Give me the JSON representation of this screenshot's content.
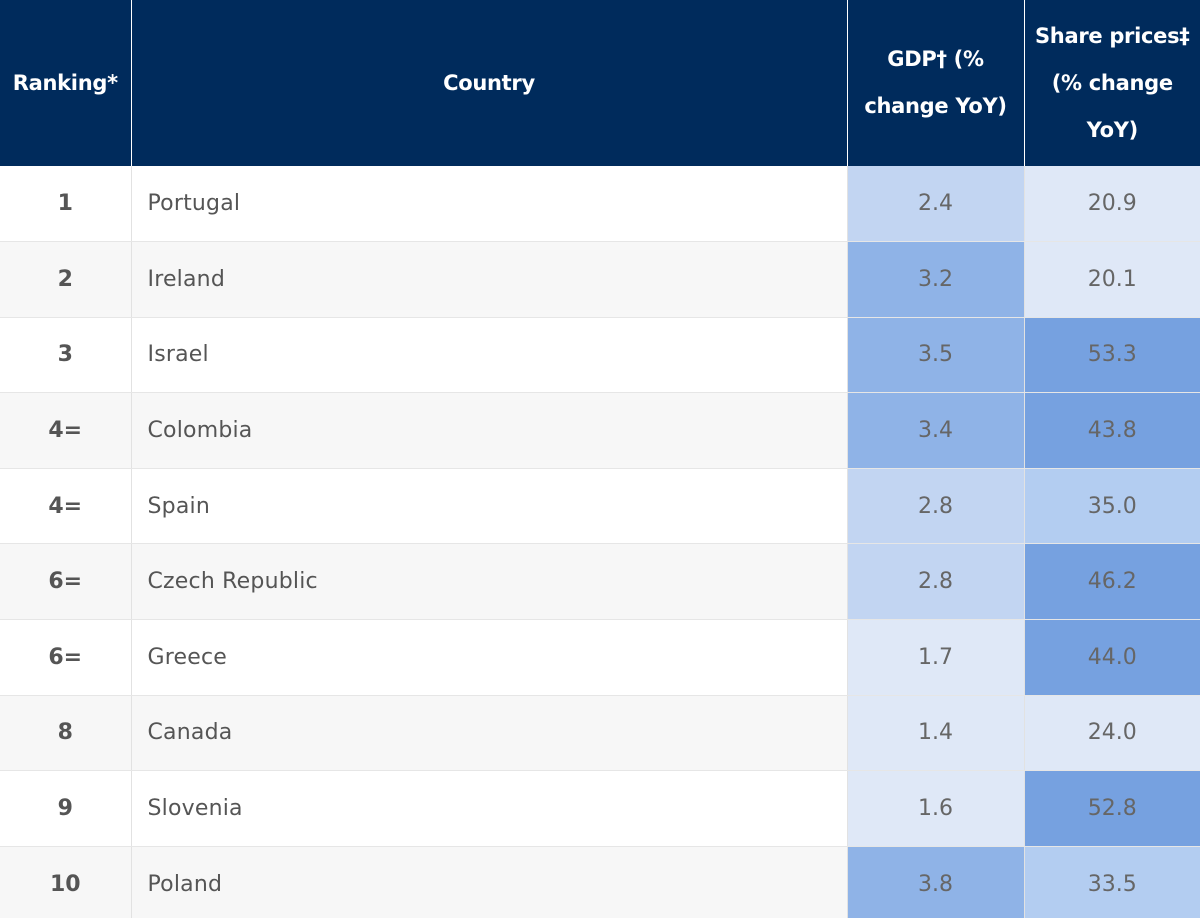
{
  "table": {
    "headers": {
      "ranking": "Ranking*",
      "country": "Country",
      "gdp": "GDP† (% change YoY)",
      "share": "Share prices‡ (% change YoY)"
    },
    "rows": [
      {
        "rank": "1",
        "country": "Portugal",
        "gdp": "2.4",
        "share": "20.9",
        "gdp_color": "#c2d5f2",
        "share_color": "#dfe8f7"
      },
      {
        "rank": "2",
        "country": "Ireland",
        "gdp": "3.2",
        "share": "20.1",
        "gdp_color": "#8fb3e7",
        "share_color": "#dfe8f7"
      },
      {
        "rank": "3",
        "country": "Israel",
        "gdp": "3.5",
        "share": "53.3",
        "gdp_color": "#8fb3e7",
        "share_color": "#76a1e0"
      },
      {
        "rank": "4=",
        "country": "Colombia",
        "gdp": "3.4",
        "share": "43.8",
        "gdp_color": "#8fb3e7",
        "share_color": "#76a1e0"
      },
      {
        "rank": "4=",
        "country": "Spain",
        "gdp": "2.8",
        "share": "35.0",
        "gdp_color": "#c2d5f2",
        "share_color": "#b3cdf1"
      },
      {
        "rank": "6=",
        "country": "Czech Republic",
        "gdp": "2.8",
        "share": "46.2",
        "gdp_color": "#c2d5f2",
        "share_color": "#76a1e0"
      },
      {
        "rank": "6=",
        "country": "Greece",
        "gdp": "1.7",
        "share": "44.0",
        "gdp_color": "#dfe8f7",
        "share_color": "#76a1e0"
      },
      {
        "rank": "8",
        "country": "Canada",
        "gdp": "1.4",
        "share": "24.0",
        "gdp_color": "#dfe8f7",
        "share_color": "#dfe8f7"
      },
      {
        "rank": "9",
        "country": "Slovenia",
        "gdp": "1.6",
        "share": "52.8",
        "gdp_color": "#dfe8f7",
        "share_color": "#76a1e0"
      },
      {
        "rank": "10",
        "country": "Poland",
        "gdp": "3.8",
        "share": "33.5",
        "gdp_color": "#8fb3e7",
        "share_color": "#b3cdf1"
      }
    ]
  }
}
